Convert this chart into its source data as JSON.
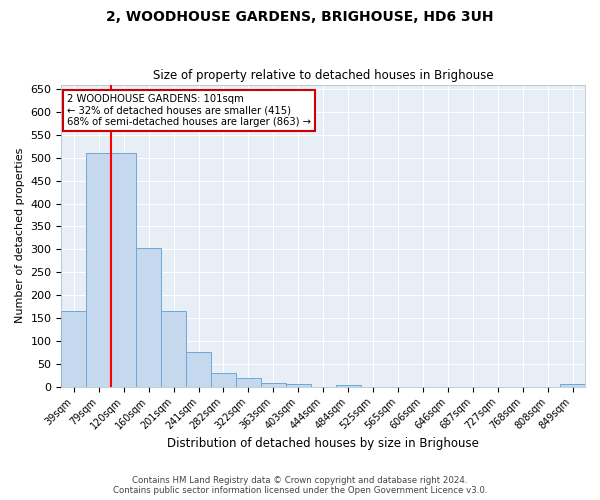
{
  "title": "2, WOODHOUSE GARDENS, BRIGHOUSE, HD6 3UH",
  "subtitle": "Size of property relative to detached houses in Brighouse",
  "xlabel": "Distribution of detached houses by size in Brighouse",
  "ylabel": "Number of detached properties",
  "bar_color": "#c5d8ee",
  "bar_edge_color": "#6aaad4",
  "background_color": "#e8eef6",
  "grid_color": "#ffffff",
  "fig_bg_color": "#ffffff",
  "categories": [
    "39sqm",
    "79sqm",
    "120sqm",
    "160sqm",
    "201sqm",
    "241sqm",
    "282sqm",
    "322sqm",
    "363sqm",
    "403sqm",
    "444sqm",
    "484sqm",
    "525sqm",
    "565sqm",
    "606sqm",
    "646sqm",
    "687sqm",
    "727sqm",
    "768sqm",
    "808sqm",
    "849sqm"
  ],
  "values": [
    165,
    510,
    510,
    302,
    165,
    75,
    30,
    20,
    8,
    5,
    0,
    3,
    0,
    0,
    0,
    0,
    0,
    0,
    0,
    0,
    5
  ],
  "ylim": [
    0,
    660
  ],
  "yticks": [
    0,
    50,
    100,
    150,
    200,
    250,
    300,
    350,
    400,
    450,
    500,
    550,
    600,
    650
  ],
  "red_line_x": 1.5,
  "annotation_text": "2 WOODHOUSE GARDENS: 101sqm\n← 32% of detached houses are smaller (415)\n68% of semi-detached houses are larger (863) →",
  "annotation_box_color": "#ffffff",
  "annotation_border_color": "#cc0000",
  "footer_line1": "Contains HM Land Registry data © Crown copyright and database right 2024.",
  "footer_line2": "Contains public sector information licensed under the Open Government Licence v3.0."
}
